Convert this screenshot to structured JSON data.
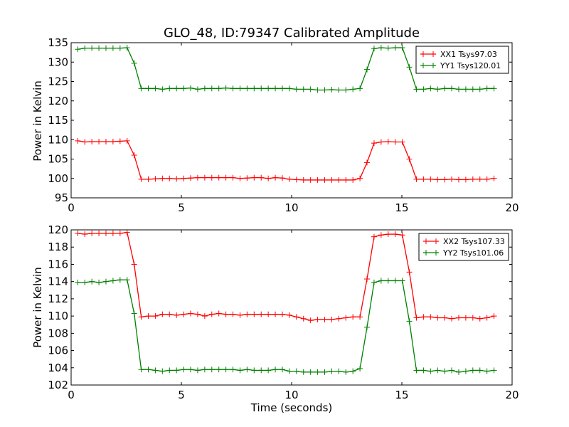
{
  "chart_data": [
    {
      "type": "line",
      "title": "GLO_48, ID:79347 Calibrated Amplitude",
      "xlabel": "",
      "ylabel": "Power in Kelvin",
      "xlim": [
        0,
        20
      ],
      "ylim": [
        95,
        135
      ],
      "xticks": [
        "0",
        "5",
        "10",
        "15",
        "20"
      ],
      "yticks": [
        "95",
        "100",
        "105",
        "110",
        "115",
        "120",
        "125",
        "130",
        "135"
      ],
      "legend": "top-right",
      "x": [
        0.3,
        0.62,
        0.94,
        1.26,
        1.58,
        1.9,
        2.22,
        2.54,
        2.86,
        3.18,
        3.5,
        3.82,
        4.14,
        4.46,
        4.78,
        5.1,
        5.42,
        5.74,
        6.06,
        6.38,
        6.7,
        7.02,
        7.34,
        7.66,
        7.98,
        8.3,
        8.62,
        8.94,
        9.26,
        9.58,
        9.9,
        10.22,
        10.54,
        10.86,
        11.18,
        11.5,
        11.82,
        12.14,
        12.46,
        12.78,
        13.1,
        13.42,
        13.74,
        14.06,
        14.38,
        14.7,
        15.02,
        15.34,
        15.66,
        15.98,
        16.3,
        16.62,
        16.94,
        17.26,
        17.58,
        17.9,
        18.22,
        18.54,
        18.86,
        19.18
      ],
      "series": [
        {
          "name": "XX1 Tsys97.03",
          "color": "#ff0000",
          "values": [
            109.7,
            109.4,
            109.5,
            109.5,
            109.5,
            109.5,
            109.6,
            109.7,
            106.0,
            99.8,
            99.8,
            99.9,
            100.0,
            100.0,
            99.9,
            100.0,
            100.1,
            100.2,
            100.2,
            100.2,
            100.2,
            100.2,
            100.2,
            100.0,
            100.1,
            100.2,
            100.2,
            100.0,
            100.2,
            100.1,
            99.8,
            99.7,
            99.6,
            99.6,
            99.6,
            99.6,
            99.6,
            99.6,
            99.6,
            99.6,
            100.0,
            104.1,
            109.1,
            109.4,
            109.5,
            109.4,
            109.4,
            105.0,
            99.8,
            99.8,
            99.8,
            99.7,
            99.7,
            99.8,
            99.7,
            99.7,
            99.8,
            99.8,
            99.8,
            100.0
          ]
        },
        {
          "name": "YY1 Tsys120.01",
          "color": "#008000",
          "values": [
            133.3,
            133.6,
            133.6,
            133.6,
            133.6,
            133.6,
            133.6,
            133.7,
            129.7,
            123.2,
            123.2,
            123.2,
            123.0,
            123.2,
            123.2,
            123.2,
            123.3,
            123.0,
            123.2,
            123.2,
            123.2,
            123.3,
            123.2,
            123.2,
            123.2,
            123.2,
            123.2,
            123.2,
            123.2,
            123.2,
            123.2,
            123.0,
            123.0,
            123.0,
            122.8,
            122.8,
            122.9,
            122.8,
            122.8,
            123.0,
            123.2,
            128.1,
            133.5,
            133.7,
            133.6,
            133.7,
            133.7,
            128.7,
            123.0,
            123.0,
            123.2,
            123.0,
            123.2,
            123.2,
            123.0,
            123.0,
            123.0,
            123.0,
            123.2,
            123.2
          ]
        }
      ]
    },
    {
      "type": "line",
      "title": "",
      "xlabel": "Time (seconds)",
      "ylabel": "Power in Kelvin",
      "xlim": [
        0,
        20
      ],
      "ylim": [
        102,
        120
      ],
      "xticks": [
        "0",
        "5",
        "10",
        "15",
        "20"
      ],
      "yticks": [
        "102",
        "104",
        "106",
        "108",
        "110",
        "112",
        "114",
        "116",
        "118",
        "120"
      ],
      "legend": "top-right",
      "x": [
        0.3,
        0.62,
        0.94,
        1.26,
        1.58,
        1.9,
        2.22,
        2.54,
        2.86,
        3.18,
        3.5,
        3.82,
        4.14,
        4.46,
        4.78,
        5.1,
        5.42,
        5.74,
        6.06,
        6.38,
        6.7,
        7.02,
        7.34,
        7.66,
        7.98,
        8.3,
        8.62,
        8.94,
        9.26,
        9.58,
        9.9,
        10.22,
        10.54,
        10.86,
        11.18,
        11.5,
        11.82,
        12.14,
        12.46,
        12.78,
        13.1,
        13.42,
        13.74,
        14.06,
        14.38,
        14.7,
        15.02,
        15.34,
        15.66,
        15.98,
        16.3,
        16.62,
        16.94,
        17.26,
        17.58,
        17.9,
        18.22,
        18.54,
        18.86,
        19.18
      ],
      "series": [
        {
          "name": "XX2 Tsys107.33",
          "color": "#ff0000",
          "values": [
            119.6,
            119.5,
            119.6,
            119.6,
            119.6,
            119.6,
            119.6,
            119.7,
            116.0,
            109.9,
            110.0,
            110.0,
            110.2,
            110.2,
            110.1,
            110.2,
            110.3,
            110.2,
            110.0,
            110.2,
            110.3,
            110.2,
            110.2,
            110.1,
            110.2,
            110.2,
            110.2,
            110.2,
            110.2,
            110.2,
            110.1,
            109.9,
            109.7,
            109.5,
            109.6,
            109.6,
            109.6,
            109.7,
            109.8,
            109.9,
            109.9,
            114.3,
            119.2,
            119.4,
            119.5,
            119.5,
            119.4,
            115.1,
            109.8,
            109.9,
            109.9,
            109.8,
            109.8,
            109.7,
            109.8,
            109.8,
            109.8,
            109.7,
            109.8,
            110.0
          ]
        },
        {
          "name": "YY2 Tsys101.06",
          "color": "#008000",
          "values": [
            113.9,
            113.9,
            114.0,
            113.9,
            114.0,
            114.1,
            114.2,
            114.2,
            110.3,
            103.8,
            103.8,
            103.7,
            103.6,
            103.7,
            103.7,
            103.8,
            103.8,
            103.7,
            103.8,
            103.8,
            103.8,
            103.8,
            103.8,
            103.7,
            103.8,
            103.7,
            103.7,
            103.7,
            103.8,
            103.8,
            103.6,
            103.6,
            103.5,
            103.5,
            103.5,
            103.5,
            103.6,
            103.6,
            103.5,
            103.6,
            103.9,
            108.7,
            113.9,
            114.1,
            114.1,
            114.1,
            114.1,
            109.4,
            103.7,
            103.7,
            103.6,
            103.7,
            103.6,
            103.7,
            103.5,
            103.6,
            103.7,
            103.7,
            103.6,
            103.7
          ]
        }
      ]
    }
  ]
}
